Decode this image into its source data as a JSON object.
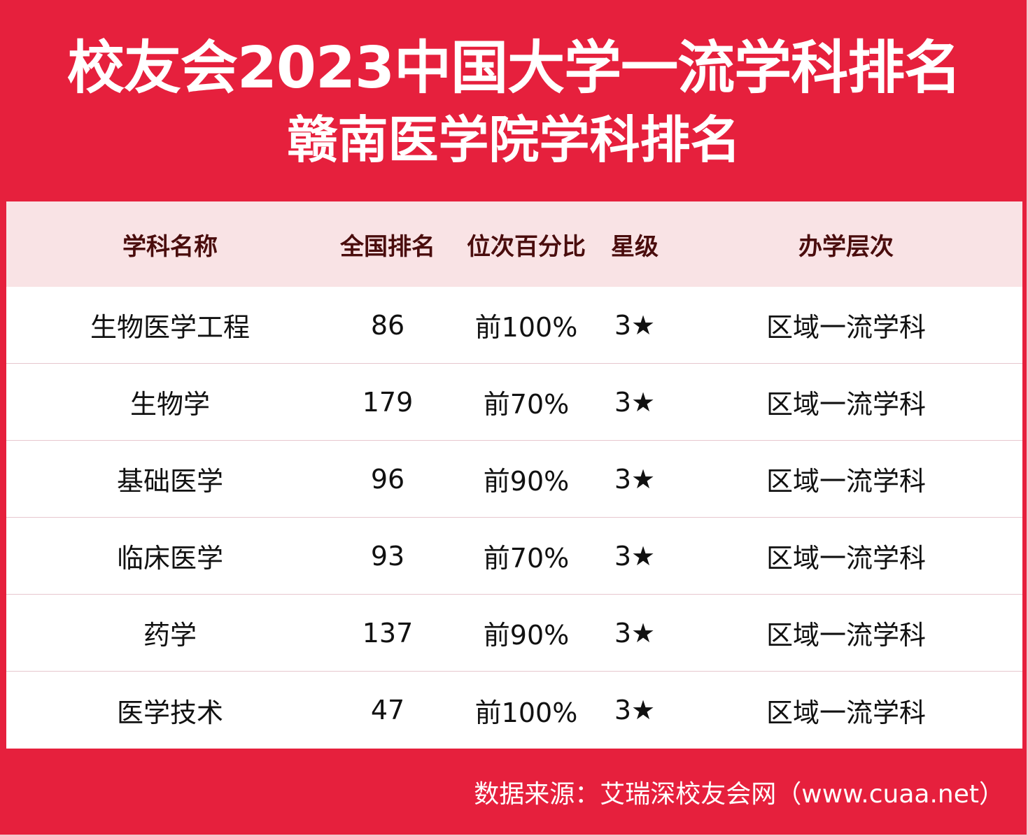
{
  "header": {
    "title": "校友会2023中国大学一流学科排名",
    "subtitle": "赣南医学院学科排名"
  },
  "table": {
    "columns": [
      "学科名称",
      "全国排名",
      "位次百分比",
      "星级",
      "办学层次"
    ],
    "rows": [
      [
        "生物医学工程",
        "86",
        "前100%",
        "3★",
        "区域一流学科"
      ],
      [
        "生物学",
        "179",
        "前70%",
        "3★",
        "区域一流学科"
      ],
      [
        "基础医学",
        "96",
        "前90%",
        "3★",
        "区域一流学科"
      ],
      [
        "临床医学",
        "93",
        "前70%",
        "3★",
        "区域一流学科"
      ],
      [
        "药学",
        "137",
        "前90%",
        "3★",
        "区域一流学科"
      ],
      [
        "医学技术",
        "47",
        "前100%",
        "3★",
        "区域一流学科"
      ]
    ]
  },
  "footer": {
    "source": "数据来源：艾瑞深校友会网（www.cuaa.net）"
  },
  "colors": {
    "brand_red": "#e6203d",
    "header_bg": "#f9e3e5",
    "header_text": "#4a0d0d"
  }
}
